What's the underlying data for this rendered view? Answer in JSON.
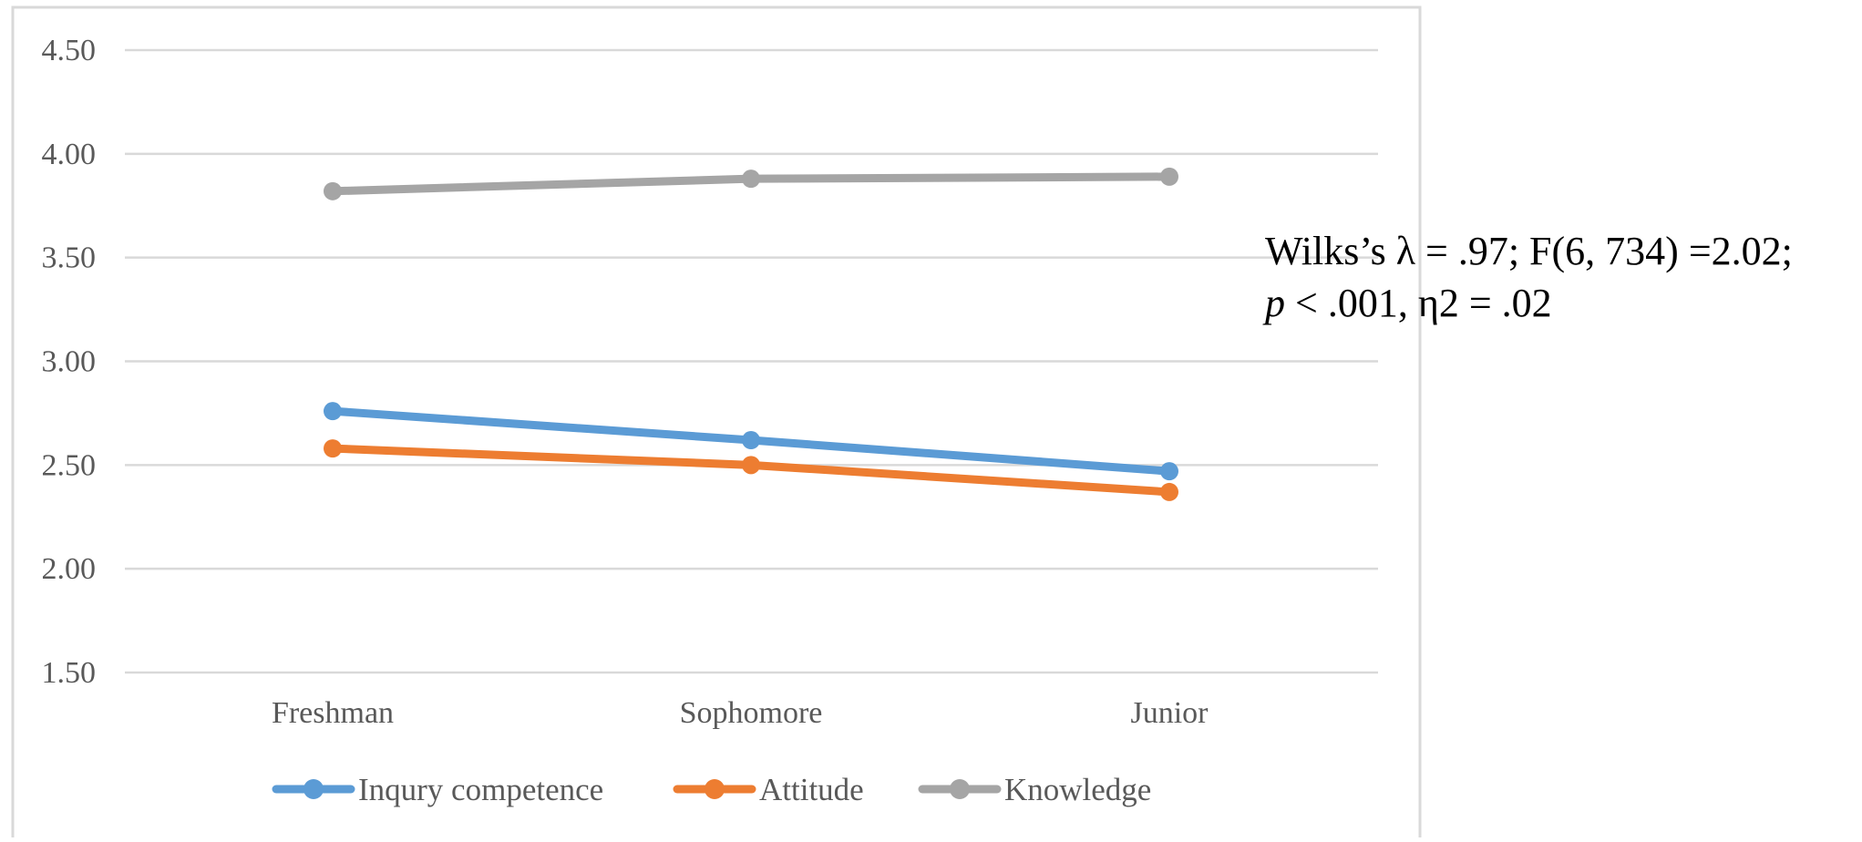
{
  "chart_data": {
    "type": "line",
    "categories": [
      "Freshman",
      "Sophomore",
      "Junior"
    ],
    "series": [
      {
        "name": "Inqury competence",
        "values": [
          2.76,
          2.62,
          2.47
        ],
        "color": "#5B9BD5"
      },
      {
        "name": "Attitude",
        "values": [
          2.58,
          2.5,
          2.37
        ],
        "color": "#ED7D31"
      },
      {
        "name": "Knowledge",
        "values": [
          3.82,
          3.88,
          3.89
        ],
        "color": "#A5A5A5"
      }
    ],
    "ylim": [
      1.5,
      4.5
    ],
    "yticks": [
      "1.50",
      "2.00",
      "2.50",
      "3.00",
      "3.50",
      "4.00",
      "4.50"
    ],
    "grid": true,
    "legend_position": "bottom",
    "annotation": {
      "line1_prefix": "Wilks’s λ = .97; F(6, 734) =2.02;",
      "line2_italic": "p",
      "line2_rest": " < .001, η2 = .02"
    }
  }
}
